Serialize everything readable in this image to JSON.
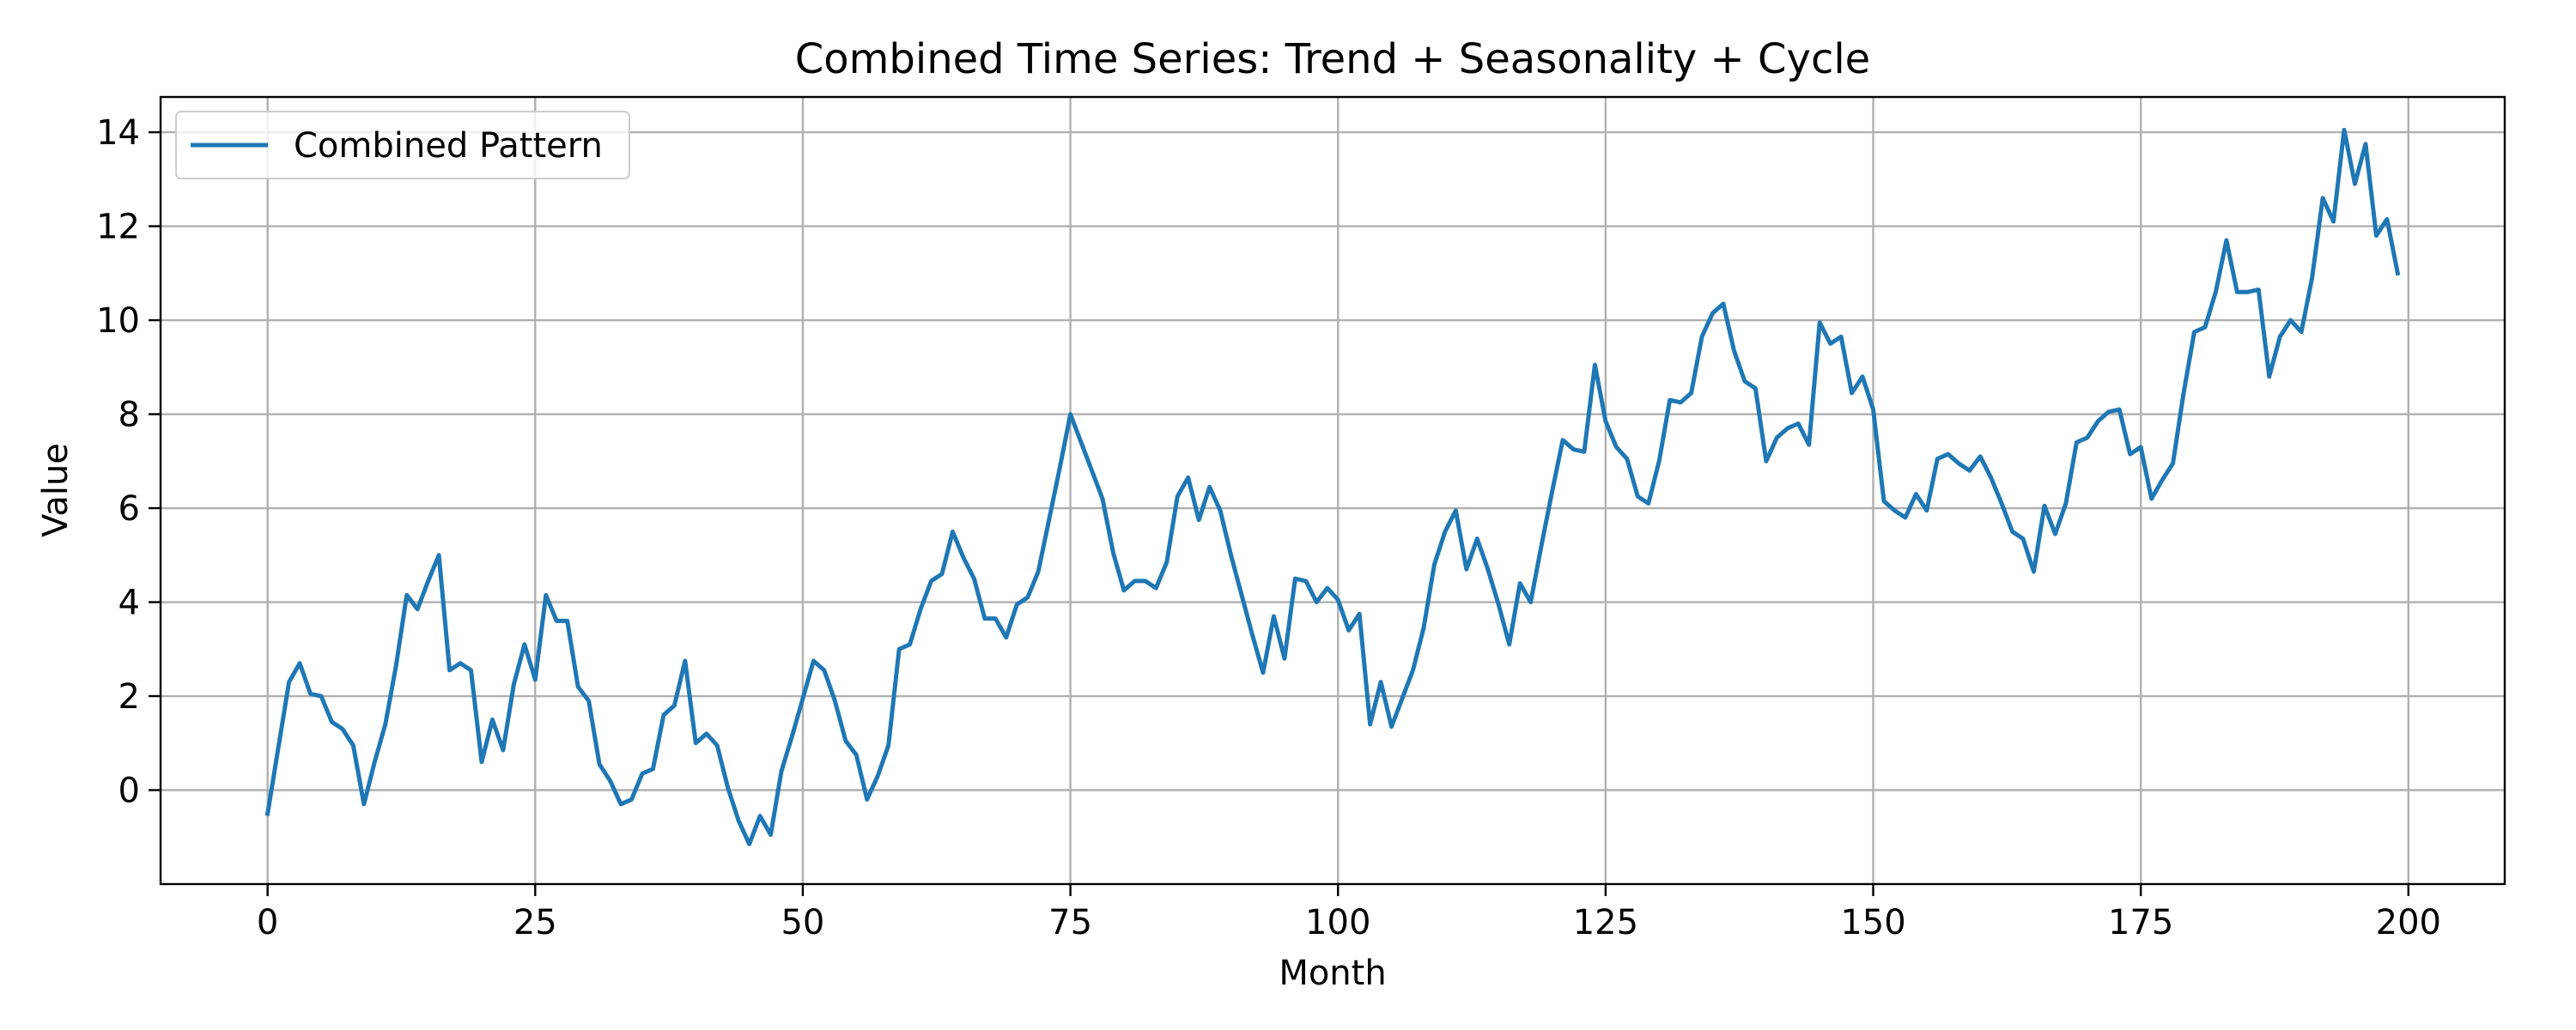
{
  "chart_data": {
    "type": "line",
    "title": "Combined Time Series: Trend + Seasonality + Cycle",
    "xlabel": "Month",
    "ylabel": "Value",
    "xlim": [
      -10,
      209
    ],
    "ylim": [
      -2,
      14.75
    ],
    "grid": true,
    "legend": "upper left",
    "x_ticks": [
      0,
      25,
      50,
      75,
      100,
      125,
      150,
      175,
      200
    ],
    "y_ticks": [
      0,
      2,
      4,
      6,
      8,
      10,
      12,
      14
    ],
    "series": [
      {
        "name": "Combined Pattern",
        "color": "#1f77b4",
        "y": [
          -0.5,
          0.9,
          2.3,
          2.7,
          2.05,
          2.0,
          1.45,
          1.3,
          0.95,
          -0.3,
          0.6,
          1.4,
          2.65,
          4.15,
          3.85,
          4.45,
          5.0,
          2.55,
          2.7,
          2.55,
          0.6,
          1.5,
          0.85,
          2.25,
          3.1,
          2.35,
          4.15,
          3.6,
          3.6,
          2.2,
          1.9,
          0.55,
          0.2,
          -0.3,
          -0.2,
          0.35,
          0.45,
          1.6,
          1.8,
          2.75,
          1.0,
          1.2,
          0.95,
          0.05,
          -0.65,
          -1.15,
          -0.55,
          -0.95,
          0.4,
          1.15,
          1.95,
          2.75,
          2.55,
          1.9,
          1.05,
          0.75,
          -0.2,
          0.3,
          0.95,
          3.0,
          3.1,
          3.85,
          4.45,
          4.6,
          5.5,
          4.95,
          4.5,
          3.65,
          3.65,
          3.25,
          3.95,
          4.1,
          4.65,
          5.75,
          6.85,
          8.0,
          7.4,
          6.8,
          6.2,
          5.05,
          4.25,
          4.45,
          4.45,
          4.3,
          4.85,
          6.25,
          6.65,
          5.75,
          6.45,
          5.95,
          5.0,
          4.15,
          3.3,
          2.5,
          3.7,
          2.8,
          4.5,
          4.45,
          4.0,
          4.3,
          4.05,
          3.4,
          3.75,
          1.4,
          2.3,
          1.35,
          1.95,
          2.55,
          3.45,
          4.8,
          5.5,
          5.95,
          4.7,
          5.35,
          4.7,
          3.95,
          3.1,
          4.4,
          4.0,
          5.2,
          6.35,
          7.45,
          7.25,
          7.2,
          9.05,
          7.85,
          7.3,
          7.05,
          6.25,
          6.1,
          7.0,
          8.3,
          8.25,
          8.45,
          9.65,
          10.15,
          10.35,
          9.35,
          8.7,
          8.55,
          7.0,
          7.5,
          7.7,
          7.8,
          7.35,
          9.95,
          9.5,
          9.65,
          8.45,
          8.8,
          8.1,
          6.15,
          5.95,
          5.8,
          6.3,
          5.95,
          7.05,
          7.15,
          6.95,
          6.8,
          7.1,
          6.65,
          6.1,
          5.5,
          5.35,
          4.65,
          6.05,
          5.45,
          6.1,
          7.4,
          7.5,
          7.85,
          8.05,
          8.1,
          7.15,
          7.3,
          6.2,
          6.6,
          6.95,
          8.45,
          9.75,
          9.85,
          10.6,
          11.7,
          10.6,
          10.6,
          10.65,
          8.8,
          9.65,
          10.0,
          9.75,
          10.9,
          12.6,
          12.1,
          14.05,
          12.9,
          13.75,
          11.8,
          12.15,
          11.0
        ]
      }
    ]
  }
}
